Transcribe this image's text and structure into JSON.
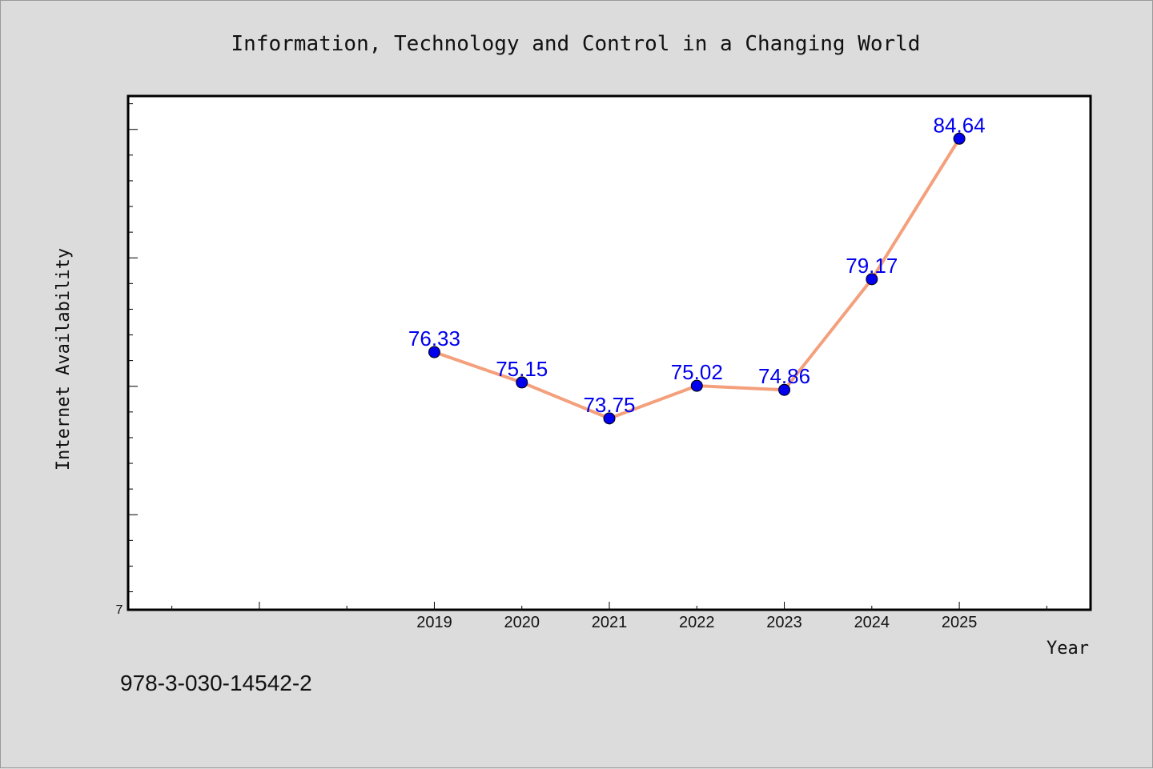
{
  "chart_data": {
    "type": "line",
    "title": "Information, Technology and Control in a Changing World",
    "xlabel": "Year",
    "ylabel": "Internet Availability",
    "x": [
      "2019",
      "2020",
      "2021",
      "2022",
      "2023",
      "2024",
      "2025"
    ],
    "series": [
      {
        "values": [
          76.33,
          75.15,
          73.75,
          75.02,
          74.86,
          79.17,
          84.64
        ],
        "line_color": "#f4a07c",
        "marker_color": "#0000ee",
        "label_color": "#0000ee"
      }
    ],
    "y_tick_labels": [
      "7"
    ],
    "ylim": [
      66.3,
      86.3
    ],
    "xlim": [
      2015.5,
      2026.5
    ],
    "grid": false,
    "legend": "none",
    "footnote": "978-3-030-14542-2"
  }
}
